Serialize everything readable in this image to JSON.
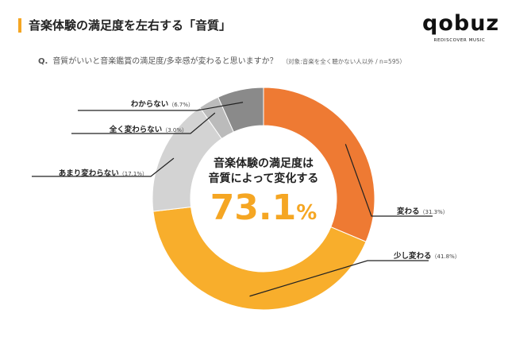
{
  "header": {
    "title": "音楽体験の満足度を左右する「音質」",
    "accent_color": "#F5A623"
  },
  "logo": {
    "wordmark": "qobuz",
    "tagline": "REDISCOVER MUSIC"
  },
  "question": {
    "prefix": "Q.",
    "text": "音質がいいと音楽鑑賞の満足度/多幸感が変わると思いますか？",
    "note": "（対象:音楽を全く聴かない人以外 / n=595）"
  },
  "center": {
    "line1": "音楽体験の満足度は",
    "line2": "音質によって変化する",
    "value": "73.1",
    "unit": "%"
  },
  "chart_data": {
    "type": "pie",
    "donut": true,
    "title": "音質がいいと音楽鑑賞の満足度/多幸感が変わると思いますか？",
    "n": 595,
    "categories": [
      "変わる",
      "少し変わる",
      "あまり変わらない",
      "全く変わらない",
      "わからない"
    ],
    "values": [
      31.3,
      41.8,
      17.1,
      3.0,
      6.7
    ],
    "unit": "%",
    "labels": [
      "変わる（31.3%）",
      "少し変わる（41.8%）",
      "あまり変わらない（17.1%）",
      "全く変わらない（3.0%）",
      "わからない（6.7%）"
    ],
    "colors": [
      "#EE7A33",
      "#F8AE2C",
      "#D3D3D3",
      "#BBBBBB",
      "#8A8A8A"
    ],
    "highlight_total": 73.1
  }
}
